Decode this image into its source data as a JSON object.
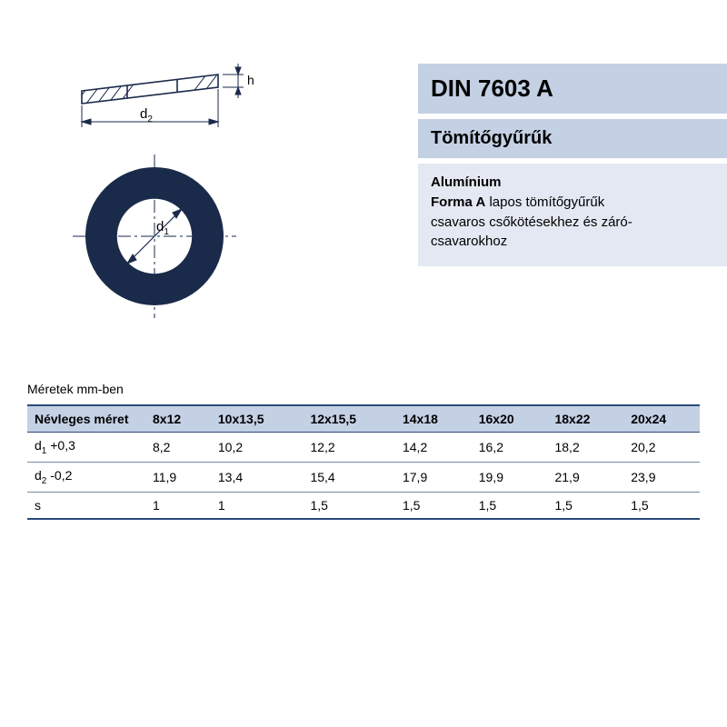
{
  "panel": {
    "title": "DIN 7603 A",
    "subtitle": "Tömítőgyűrűk",
    "desc_line1_bold": "Alumínium",
    "desc_line2_bold": "Forma A",
    "desc_line2_rest": " lapos tömítőgyűrűk",
    "desc_line3": "csavaros csőkötésekhez és záró-",
    "desc_line4": "csavarokhoz",
    "title_bg": "#c4d0e4",
    "desc_bg": "#e3e8f2",
    "title_fontsize": 26,
    "sub_fontsize": 20,
    "desc_fontsize": 15
  },
  "diagram": {
    "d1_label": "d",
    "d1_sub": "1",
    "d2_label": "d",
    "d2_sub": "2",
    "h_label": "h",
    "stroke": "#1a2a4a",
    "hatch": "#1a2a4a"
  },
  "table": {
    "caption": "Méretek mm-ben",
    "header_bg": "#c4d0e4",
    "border_color": "#2b4a7a",
    "row_border_color": "#7a8aa6",
    "fontsize": 14,
    "columns": [
      "Névleges méret",
      "8x12",
      "10x13,5",
      "12x15,5",
      "14x18",
      "16x20",
      "18x22",
      "20x24"
    ],
    "rows": [
      {
        "label_main": "d",
        "label_sub": "1",
        "label_suffix": " +0,3",
        "values": [
          "8,2",
          "10,2",
          "12,2",
          "14,2",
          "16,2",
          "18,2",
          "20,2"
        ]
      },
      {
        "label_main": "d",
        "label_sub": "2",
        "label_suffix": " -0,2",
        "values": [
          "11,9",
          "13,4",
          "15,4",
          "17,9",
          "19,9",
          "21,9",
          "23,9"
        ]
      },
      {
        "label_main": "s",
        "label_sub": "",
        "label_suffix": "",
        "values": [
          "1",
          "1",
          "1,5",
          "1,5",
          "1,5",
          "1,5",
          "1,5"
        ]
      }
    ]
  }
}
